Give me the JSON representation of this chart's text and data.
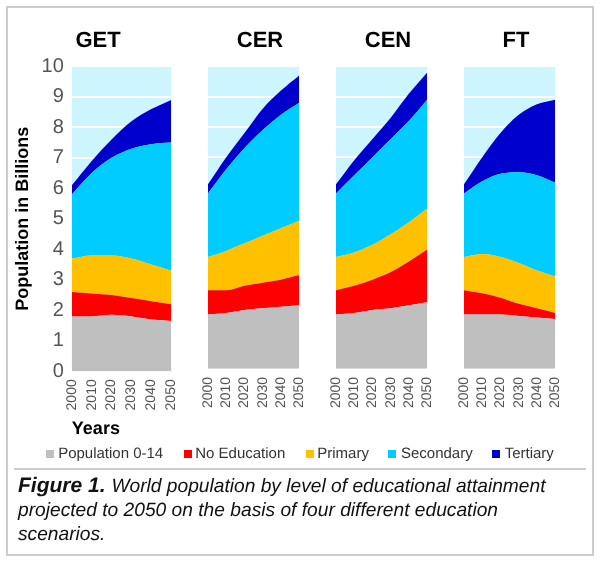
{
  "chart_data": [
    {
      "type": "area",
      "title": "GET",
      "ylabel": "Population in Billions",
      "xlabel": "Years",
      "categories": [
        "2000",
        "2010",
        "2020",
        "2030",
        "2040",
        "2050"
      ],
      "stacked": true,
      "ylim": [
        0,
        10
      ],
      "yticks": [
        0,
        1,
        2,
        3,
        4,
        5,
        6,
        7,
        8,
        9,
        10
      ],
      "grid": "y",
      "legend": "bottom",
      "bands": [
        {
          "axis": "y",
          "from": 0,
          "to": 10,
          "color": "#ccf5ff"
        }
      ],
      "series": [
        {
          "name": "Population 0-14",
          "color": "#bfbfbf",
          "values": [
            1.8,
            1.8,
            1.85,
            1.8,
            1.7,
            1.65
          ]
        },
        {
          "name": "No Education",
          "color": "#ff0000",
          "values": [
            0.8,
            0.75,
            0.65,
            0.6,
            0.6,
            0.55
          ]
        },
        {
          "name": "Primary",
          "color": "#ffc000",
          "values": [
            1.1,
            1.25,
            1.3,
            1.3,
            1.2,
            1.1
          ]
        },
        {
          "name": "Secondary",
          "color": "#00ccff",
          "values": [
            2.1,
            2.7,
            3.2,
            3.6,
            3.95,
            4.2
          ]
        },
        {
          "name": "Tertiary",
          "color": "#0000cc",
          "values": [
            0.3,
            0.4,
            0.6,
            0.9,
            1.15,
            1.4
          ]
        }
      ],
      "annotations": [
        "Figure 1.",
        "World population by level of educational attainment projected to 2050 on the basis of four different education scenarios."
      ]
    },
    {
      "type": "area",
      "title": "CER",
      "categories": [
        "2000",
        "2010",
        "2020",
        "2030",
        "2040",
        "2050"
      ],
      "stacked": true,
      "ylim": [
        0,
        10
      ],
      "yticks": [
        0,
        1,
        2,
        3,
        4,
        5,
        6,
        7,
        8,
        9,
        10
      ],
      "grid": "y",
      "tick_labels": "x",
      "bands": [
        {
          "axis": "y",
          "from": 0,
          "to": 10,
          "color": "#ccf5ff"
        }
      ],
      "series": [
        {
          "color": "#bfbfbf",
          "values": [
            1.8,
            1.85,
            1.95,
            2.0,
            2.05,
            2.1
          ]
        },
        {
          "color": "#ff0000",
          "values": [
            0.8,
            0.75,
            0.8,
            0.85,
            0.9,
            1.0
          ]
        },
        {
          "color": "#ffc000",
          "values": [
            1.1,
            1.3,
            1.4,
            1.55,
            1.7,
            1.8
          ]
        },
        {
          "color": "#00ccff",
          "values": [
            2.1,
            2.7,
            3.15,
            3.5,
            3.75,
            3.9
          ]
        },
        {
          "color": "#0000cc",
          "values": [
            0.3,
            0.4,
            0.5,
            0.7,
            0.8,
            0.9
          ]
        }
      ]
    },
    {
      "type": "area",
      "title": "CEN",
      "categories": [
        "2000",
        "2010",
        "2020",
        "2030",
        "2040",
        "2050"
      ],
      "stacked": true,
      "ylim": [
        0,
        10
      ],
      "yticks": [
        0,
        1,
        2,
        3,
        4,
        5,
        6,
        7,
        8,
        9,
        10
      ],
      "grid": "y",
      "tick_labels": "x",
      "bands": [
        {
          "axis": "y",
          "from": 0,
          "to": 10,
          "color": "#ccf5ff"
        }
      ],
      "series": [
        {
          "color": "#bfbfbf",
          "values": [
            1.8,
            1.85,
            1.95,
            2.0,
            2.1,
            2.2
          ]
        },
        {
          "color": "#ff0000",
          "values": [
            0.8,
            0.9,
            1.0,
            1.2,
            1.45,
            1.75
          ]
        },
        {
          "color": "#ffc000",
          "values": [
            1.1,
            1.1,
            1.15,
            1.25,
            1.3,
            1.35
          ]
        },
        {
          "color": "#00ccff",
          "values": [
            2.1,
            2.55,
            2.9,
            3.15,
            3.35,
            3.6
          ]
        },
        {
          "color": "#0000cc",
          "values": [
            0.3,
            0.5,
            0.6,
            0.7,
            0.9,
            0.9
          ]
        }
      ]
    },
    {
      "type": "area",
      "title": "FT",
      "categories": [
        "2000",
        "2010",
        "2020",
        "2030",
        "2040",
        "2050"
      ],
      "stacked": true,
      "ylim": [
        0,
        10
      ],
      "yticks": [
        0,
        1,
        2,
        3,
        4,
        5,
        6,
        7,
        8,
        9,
        10
      ],
      "grid": "y",
      "tick_labels": "x",
      "bands": [
        {
          "axis": "y",
          "from": 0,
          "to": 10,
          "color": "#ccf5ff"
        }
      ],
      "series": [
        {
          "color": "#bfbfbf",
          "values": [
            1.8,
            1.8,
            1.8,
            1.75,
            1.7,
            1.65
          ]
        },
        {
          "color": "#ff0000",
          "values": [
            0.8,
            0.7,
            0.55,
            0.4,
            0.3,
            0.2
          ]
        },
        {
          "color": "#ffc000",
          "values": [
            1.1,
            1.3,
            1.35,
            1.35,
            1.25,
            1.2
          ]
        },
        {
          "color": "#00ccff",
          "values": [
            2.1,
            2.4,
            2.75,
            3.0,
            3.15,
            3.1
          ]
        },
        {
          "color": "#0000cc",
          "values": [
            0.3,
            0.8,
            1.35,
            1.9,
            2.35,
            2.75
          ]
        }
      ]
    }
  ]
}
